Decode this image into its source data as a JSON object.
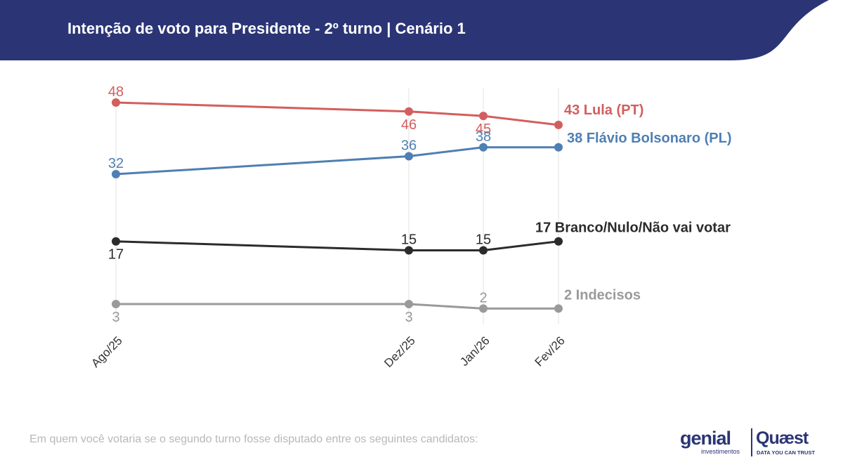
{
  "header": {
    "title": "Intenção de voto para Presidente - 2º turno | Cenário 1"
  },
  "footnote": "Em quem você votaria se o segundo turno fosse disputado entre os seguintes candidatos:",
  "logos": {
    "genial": "genial",
    "genial_sub": "investimentos",
    "quaest": "Quæst",
    "quaest_sub": "DATA YOU CAN TRUST"
  },
  "colors": {
    "header_bg": "#2b3575",
    "lula": "#d35e5e",
    "flavio": "#4f7fb3",
    "branco": "#2b2b2b",
    "indecisos": "#9a9a9a"
  },
  "chart_data": {
    "type": "line",
    "title": "Intenção de voto para Presidente - 2º turno | Cenário 1",
    "x": [
      "Ago/25",
      "Dez/25",
      "Jan/26",
      "Fev/26"
    ],
    "ylim": [
      0,
      50
    ],
    "grid": "vertical",
    "legend": "end-of-line labels",
    "series": [
      {
        "name": "Lula (PT)",
        "values": [
          48,
          46,
          45,
          43
        ],
        "label_positions": [
          "above",
          "below",
          "below",
          "end"
        ],
        "color": "#d35e5e",
        "end_label": "43 Lula (PT)"
      },
      {
        "name": "Flávio Bolsonaro (PL)",
        "values": [
          32,
          36,
          38,
          38
        ],
        "label_positions": [
          "above",
          "above",
          "above",
          "end"
        ],
        "color": "#4f7fb3",
        "end_label": "38 Flávio Bolsonaro (PL)"
      },
      {
        "name": "Branco/Nulo/Não vai votar",
        "values": [
          17,
          15,
          15,
          17
        ],
        "label_positions": [
          "below",
          "above",
          "above",
          "end"
        ],
        "color": "#2b2b2b",
        "end_label": "17 Branco/Nulo/Não vai votar"
      },
      {
        "name": "Indecisos",
        "values": [
          3,
          3,
          2,
          2
        ],
        "label_positions": [
          "below",
          "below",
          "above",
          "end"
        ],
        "color": "#9a9a9a",
        "end_label": "2 Indecisos"
      }
    ]
  }
}
